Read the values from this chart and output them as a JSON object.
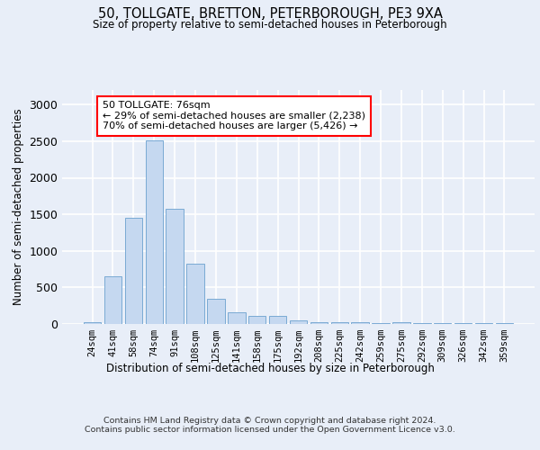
{
  "title": "50, TOLLGATE, BRETTON, PETERBOROUGH, PE3 9XA",
  "subtitle": "Size of property relative to semi-detached houses in Peterborough",
  "xlabel": "Distribution of semi-detached houses by size in Peterborough",
  "ylabel": "Number of semi-detached properties",
  "categories": [
    "24sqm",
    "41sqm",
    "58sqm",
    "74sqm",
    "91sqm",
    "108sqm",
    "125sqm",
    "141sqm",
    "158sqm",
    "175sqm",
    "192sqm",
    "208sqm",
    "225sqm",
    "242sqm",
    "259sqm",
    "275sqm",
    "292sqm",
    "309sqm",
    "326sqm",
    "342sqm",
    "359sqm"
  ],
  "values": [
    30,
    650,
    1450,
    2510,
    1580,
    830,
    350,
    165,
    115,
    115,
    55,
    30,
    25,
    20,
    10,
    25,
    10,
    10,
    10,
    10,
    10
  ],
  "bar_color": "#c5d8f0",
  "bar_edge_color": "#7aaad4",
  "annotation_text": "50 TOLLGATE: 76sqm\n← 29% of semi-detached houses are smaller (2,238)\n70% of semi-detached houses are larger (5,426) →",
  "background_color": "#e8eef8",
  "plot_bg_color": "#e8eef8",
  "grid_color": "#ffffff",
  "footer": "Contains HM Land Registry data © Crown copyright and database right 2024.\nContains public sector information licensed under the Open Government Licence v3.0.",
  "ylim": [
    0,
    3200
  ],
  "yticks": [
    0,
    500,
    1000,
    1500,
    2000,
    2500,
    3000
  ]
}
